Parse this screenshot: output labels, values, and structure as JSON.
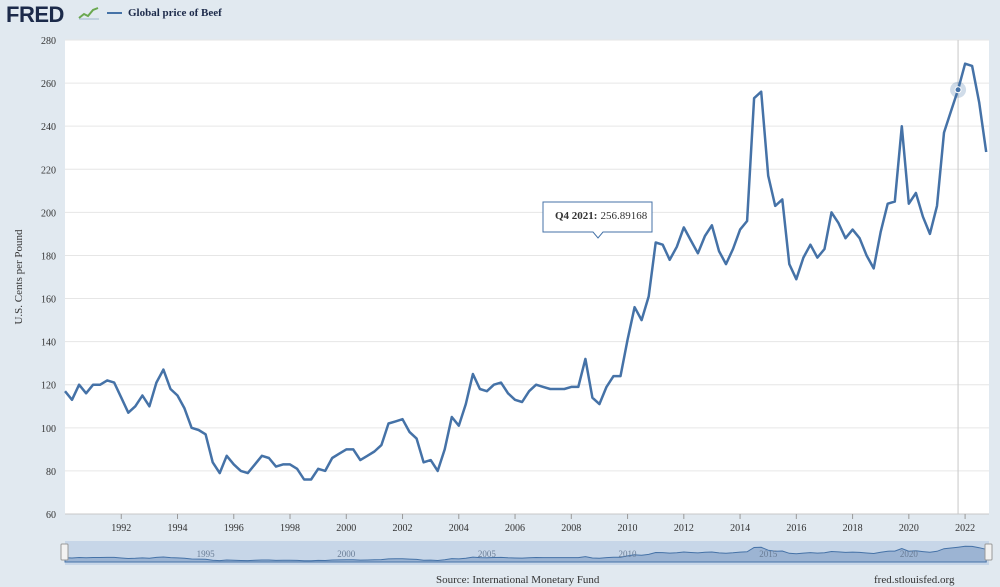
{
  "app": {
    "logo": "FRED",
    "legend_label": "Global price of Beef",
    "source": "Source: International Monetary Fund",
    "site": "fred.stlouisfed.org",
    "line_color": "#4572a7"
  },
  "tooltip": {
    "label": "Q4 2021:",
    "value": "256.89168"
  },
  "navigator": {
    "labels": [
      "1995",
      "2000",
      "2005",
      "2010",
      "2015",
      "2020"
    ]
  },
  "chart_data": {
    "type": "line",
    "title": "Global price of Beef",
    "ylabel": "U.S. Cents per Pound",
    "xlabel": "",
    "ylim": [
      60,
      280
    ],
    "xlim": [
      1990.0,
      2022.85
    ],
    "yticks": [
      60,
      80,
      100,
      120,
      140,
      160,
      180,
      200,
      220,
      240,
      260,
      280
    ],
    "xticks": [
      1992,
      1994,
      1996,
      1998,
      2000,
      2002,
      2004,
      2006,
      2008,
      2010,
      2012,
      2014,
      2016,
      2018,
      2020,
      2022
    ],
    "series": [
      {
        "name": "Global price of Beef",
        "frequency": "quarterly",
        "start": "1990-Q1",
        "values": [
          117,
          113,
          120,
          116,
          120,
          120,
          122,
          121,
          114,
          107,
          110,
          115,
          110,
          121,
          127,
          118,
          115,
          109,
          100,
          99,
          97,
          84,
          79,
          87,
          83,
          80,
          79,
          83,
          87,
          86,
          82,
          83,
          83,
          81,
          76,
          76,
          81,
          80,
          86,
          88,
          90,
          90,
          85,
          87,
          89,
          92,
          102,
          103,
          104,
          98,
          95,
          84,
          85,
          80,
          90,
          105,
          101,
          111,
          125,
          118,
          117,
          120,
          121,
          116,
          113,
          112,
          117,
          120,
          119,
          118,
          118,
          118,
          119,
          119,
          132,
          114,
          111,
          119,
          124,
          124,
          141,
          156,
          150,
          161,
          186,
          185,
          178,
          184,
          193,
          187,
          181,
          189,
          194,
          182,
          176,
          183,
          192,
          196,
          253,
          256,
          217,
          203,
          206,
          176,
          169,
          179,
          185,
          179,
          183,
          200,
          195,
          188,
          192,
          188,
          180,
          174,
          191,
          204,
          205,
          240,
          204,
          209,
          198,
          190,
          203,
          237,
          247,
          257,
          269,
          268,
          251,
          228
        ]
      }
    ],
    "highlight": {
      "label": "Q4 2021",
      "value": 256.89168
    }
  }
}
